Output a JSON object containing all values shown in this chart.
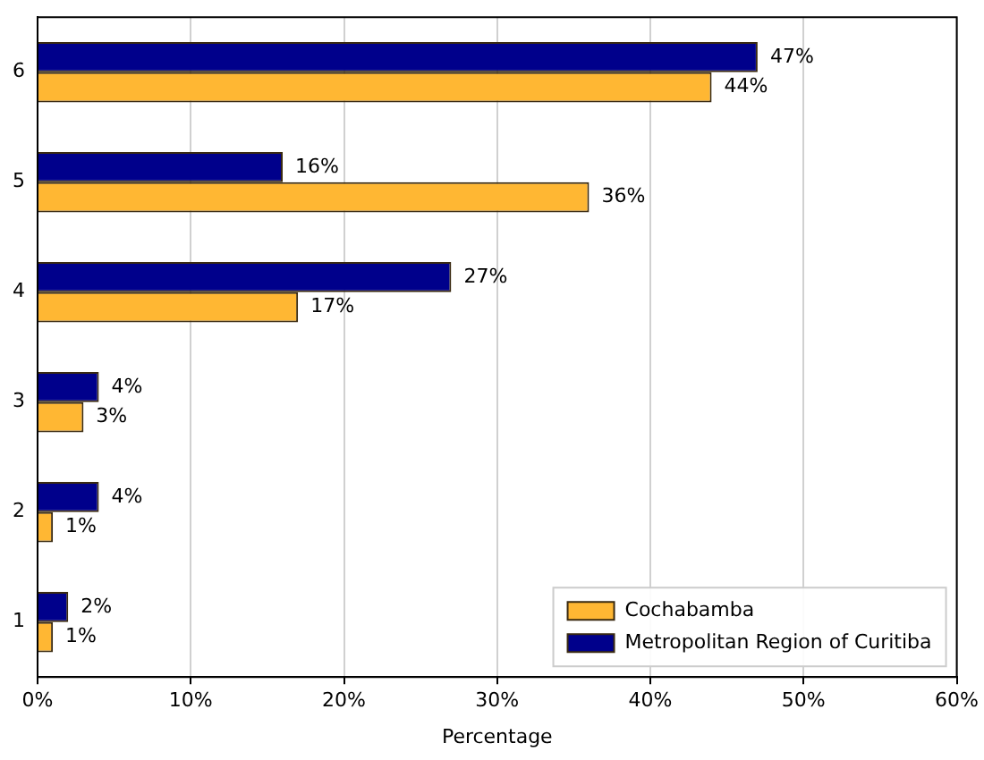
{
  "chart_data": {
    "type": "bar",
    "orientation": "horizontal",
    "categories": [
      "6",
      "5",
      "4",
      "3",
      "2",
      "1"
    ],
    "xlabel": "Percentage",
    "series": [
      {
        "name": "Cochabamba",
        "color": "#ffb733",
        "values": [
          44,
          36,
          17,
          3,
          1,
          1
        ],
        "value_labels": [
          "44%",
          "36%",
          "17%",
          "3%",
          "1%",
          "1%"
        ]
      },
      {
        "name": "Metropolitan Region of Curitiba",
        "color": "#00008b",
        "values": [
          47,
          16,
          27,
          4,
          4,
          2
        ],
        "value_labels": [
          "47%",
          "16%",
          "27%",
          "4%",
          "4%",
          "2%"
        ]
      }
    ],
    "xlim": [
      0,
      60
    ],
    "xticks": [
      {
        "value": 0,
        "label": "0%"
      },
      {
        "value": 10,
        "label": "10%"
      },
      {
        "value": 20,
        "label": "20%"
      },
      {
        "value": 30,
        "label": "30%"
      },
      {
        "value": 40,
        "label": "40%"
      },
      {
        "value": 50,
        "label": "50%"
      },
      {
        "value": 60,
        "label": "60%"
      }
    ],
    "grid": "x",
    "legend": "bottom right"
  }
}
